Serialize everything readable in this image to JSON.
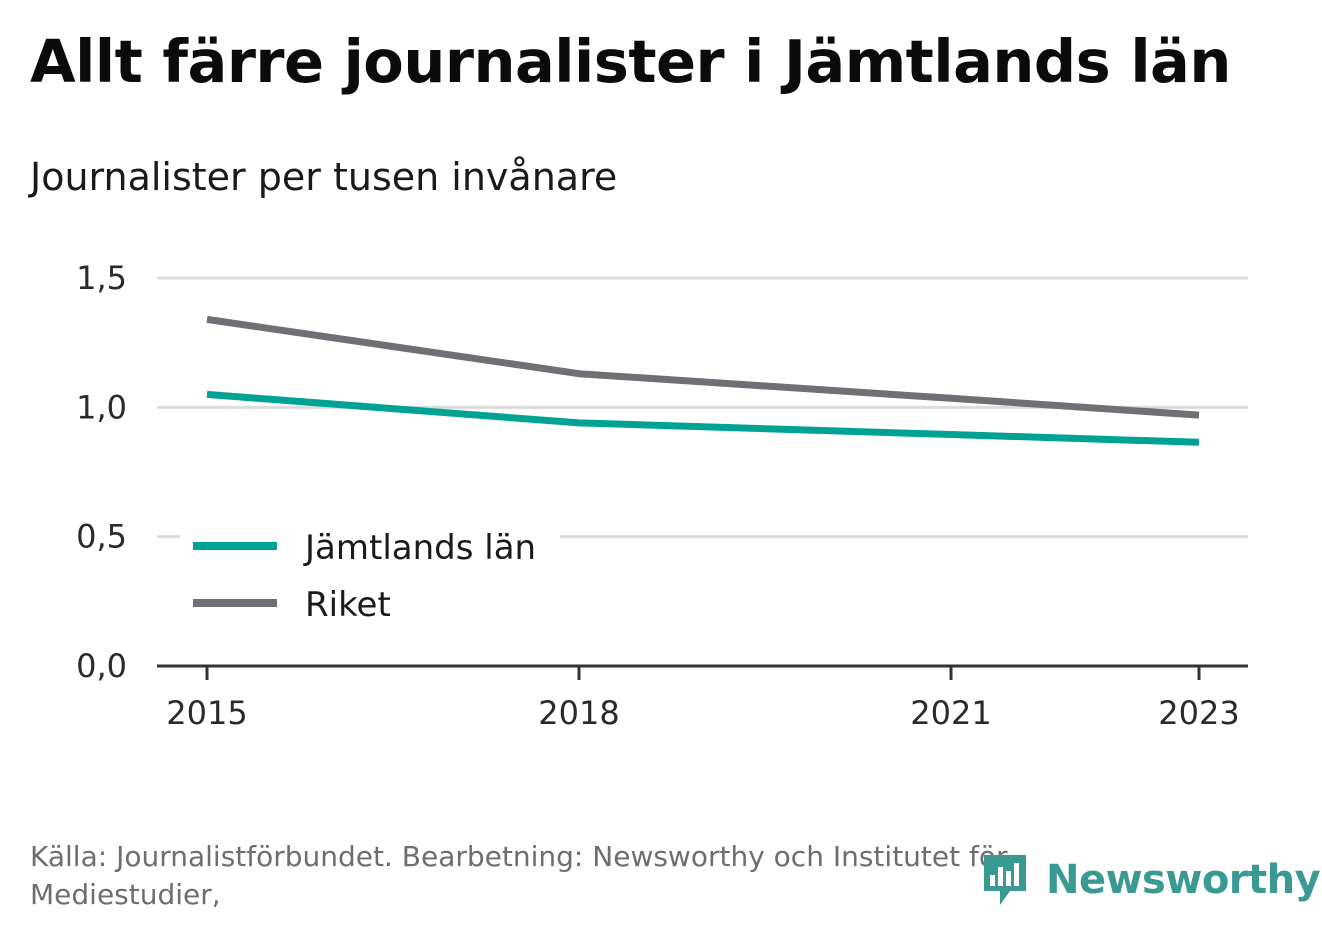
{
  "title": "Allt färre journalister i Jämtlands län",
  "subtitle": "Journalister per tusen invånare",
  "source": "Källa: Journalistförbundet. Bearbetning: Newsworthy och Institutet för Mediestudier,",
  "logo": {
    "text": "Newsworthy",
    "icon": "newsworthy-chart-bubble-icon"
  },
  "colors": {
    "jamtland": "#00a393",
    "riket": "#6f6f75",
    "grid": "#dcdcdc",
    "axis": "#333333",
    "logo": "#3a9a93"
  },
  "chart_data": {
    "type": "line",
    "x": [
      2015,
      2018,
      2021,
      2023
    ],
    "x_ticks": [
      "2015",
      "2018",
      "2021",
      "2023"
    ],
    "y_ticks": [
      "0,0",
      "0,5",
      "1,0",
      "1,5"
    ],
    "y_tick_values": [
      0,
      0.5,
      1.0,
      1.5
    ],
    "ylim": [
      0,
      1.5
    ],
    "xlim": [
      2015,
      2023
    ],
    "grid": true,
    "legend_position": "lower-left",
    "series": [
      {
        "name": "Jämtlands län",
        "color": "#00a393",
        "values": [
          1.05,
          0.94,
          0.895,
          0.865
        ]
      },
      {
        "name": "Riket",
        "color": "#6f6f75",
        "values": [
          1.34,
          1.13,
          1.035,
          0.97
        ]
      }
    ]
  }
}
